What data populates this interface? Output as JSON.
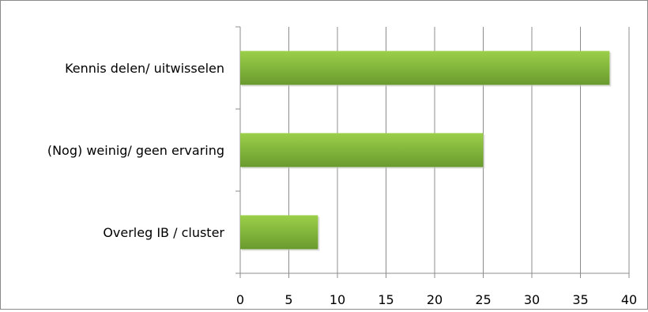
{
  "chart_data": {
    "type": "bar",
    "orientation": "horizontal",
    "title": "",
    "xlabel": "",
    "ylabel": "",
    "categories": [
      "Kennis delen/ uitwisselen",
      "(Nog) weinig/ geen ervaring",
      "Overleg IB / cluster"
    ],
    "values": [
      38,
      25,
      8
    ],
    "xlim": [
      0,
      40
    ],
    "xticks": [
      0,
      5,
      10,
      15,
      20,
      25,
      30,
      35,
      40
    ],
    "xtick_labels": [
      "0",
      "5",
      "10",
      "15",
      "20",
      "25",
      "30",
      "35",
      "40"
    ],
    "grid": "vertical",
    "legend": "none",
    "colors": {
      "bar_light": "#9ccf4a",
      "bar_mid": "#7fb33a",
      "bar_dark": "#6a9a2e",
      "grid": "#8c8c8c",
      "axis": "#8c8c8c",
      "text": "#000000",
      "frame": "#8a8a8a"
    }
  }
}
